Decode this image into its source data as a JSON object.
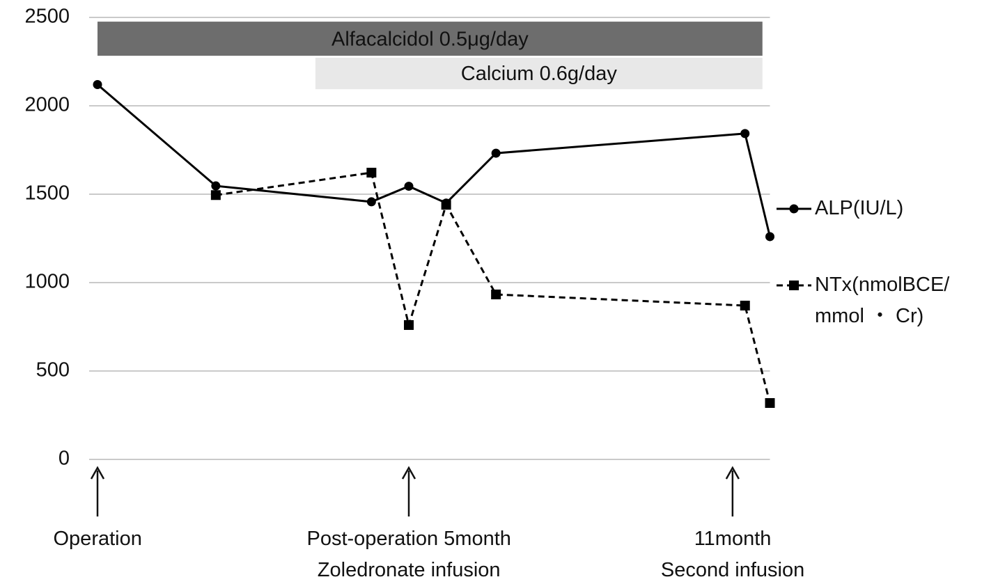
{
  "chart_data": {
    "type": "line",
    "x": [
      0,
      1.9,
      4.4,
      5.0,
      5.6,
      6.4,
      10.4,
      10.8
    ],
    "xlim": [
      0,
      10.8
    ],
    "ylim": [
      0,
      2500
    ],
    "yticks": [
      0,
      500,
      1000,
      1500,
      2000,
      2500
    ],
    "grid": true,
    "legend": "right",
    "series": [
      {
        "name": "ALP(IU/L)",
        "color": "#000000",
        "marker": "circle",
        "dash": false,
        "values": [
          2120,
          1547,
          1457,
          1545,
          1450,
          1732,
          1843,
          1260
        ]
      },
      {
        "name": "NTx(nmolBCE/\nmmol ・ Cr)",
        "color": "#000000",
        "marker": "square",
        "dash": true,
        "values": [
          null,
          1495,
          1622,
          760,
          1440,
          933,
          870,
          319
        ]
      }
    ],
    "bands": [
      {
        "label": "Alfacalcidol 0.5μg/day",
        "x": [
          0,
          10.68
        ],
        "y": [
          2283,
          2476
        ],
        "color": "#6d6d6d"
      },
      {
        "label": "Calcium 0.6g/day",
        "x": [
          3.5,
          10.68
        ],
        "y": [
          2094,
          2272
        ],
        "color": "#e8e8e8"
      }
    ],
    "annotations": [
      {
        "text": "Operation",
        "x": 0
      },
      {
        "text": "Post-operation 5month\nZoledronate infusion",
        "x": 5.0
      },
      {
        "text": "11month\nSecond infusion",
        "x": 10.2
      }
    ]
  }
}
